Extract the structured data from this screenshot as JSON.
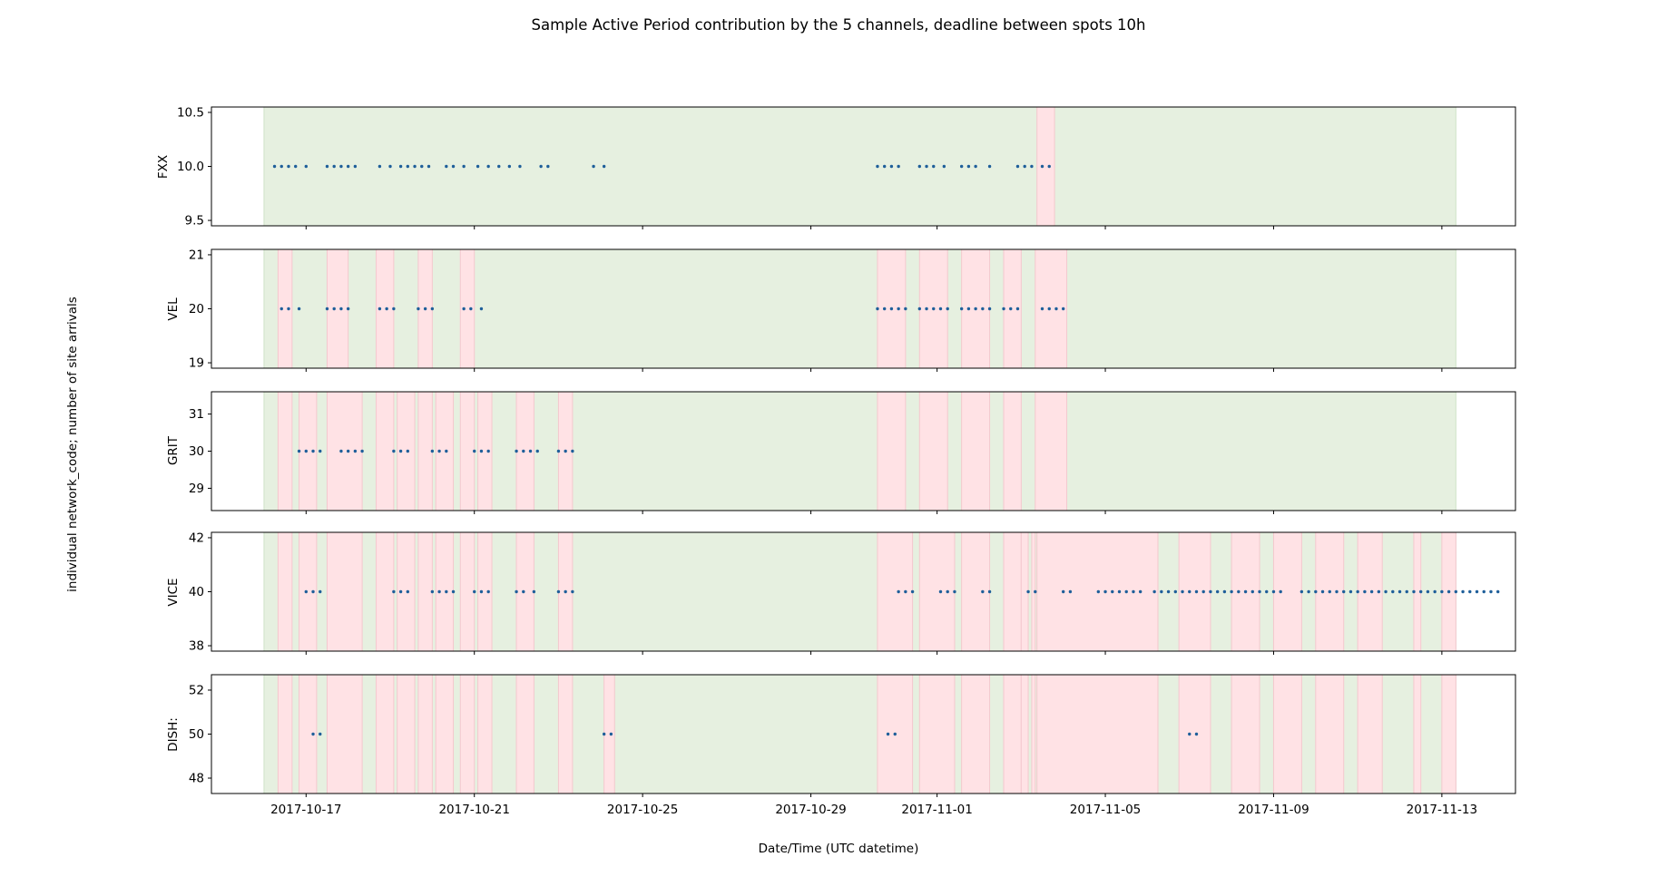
{
  "chart_data": {
    "type": "scatter",
    "title": "Sample Active Period contribution by the 5 channels, deadline between spots 10h",
    "xlabel": "Date/Time (UTC datetime)",
    "ylabel": "individual network_code; number of site arrivals",
    "x_axis": {
      "range": [
        "2017-10-14T18:00",
        "2017-11-14T18:00"
      ],
      "ticks": [
        "2017-10-17",
        "2017-10-21",
        "2017-10-25",
        "2017-10-29",
        "2017-11-01",
        "2017-11-05",
        "2017-11-09",
        "2017-11-13"
      ]
    },
    "colors": {
      "active": "#e6f0e0",
      "active_edge": "#cfe2c8",
      "gap": "#ffe2e5",
      "gap_edge": "#f4c8ce",
      "point": "#1f5f9a"
    },
    "overall_period": [
      "2017-10-16T00:00",
      "2017-11-13T08:00"
    ],
    "panels": [
      {
        "channel": "FXX",
        "value": 10,
        "ylim": [
          9.45,
          10.55
        ],
        "yticks": [
          "9.5",
          "10.0",
          "10.5"
        ],
        "gaps": [
          [
            "2017-11-03T09:00",
            "2017-11-03T19:00"
          ]
        ],
        "points": [
          "2017-10-16T06:00",
          "2017-10-16T10:00",
          "2017-10-16T14:00",
          "2017-10-16T18:00",
          "2017-10-17T00:00",
          "2017-10-17T12:00",
          "2017-10-17T16:00",
          "2017-10-17T20:00",
          "2017-10-18T00:00",
          "2017-10-18T04:00",
          "2017-10-18T18:00",
          "2017-10-19T00:00",
          "2017-10-19T06:00",
          "2017-10-19T10:00",
          "2017-10-19T14:00",
          "2017-10-19T18:00",
          "2017-10-19T22:00",
          "2017-10-20T08:00",
          "2017-10-20T12:00",
          "2017-10-20T18:00",
          "2017-10-21T02:00",
          "2017-10-21T08:00",
          "2017-10-21T14:00",
          "2017-10-21T20:00",
          "2017-10-22T02:00",
          "2017-10-22T14:00",
          "2017-10-22T18:00",
          "2017-10-23T20:00",
          "2017-10-24T02:00",
          "2017-10-30T14:00",
          "2017-10-30T18:00",
          "2017-10-30T22:00",
          "2017-10-31T02:00",
          "2017-10-31T14:00",
          "2017-10-31T18:00",
          "2017-10-31T22:00",
          "2017-11-01T04:00",
          "2017-11-01T14:00",
          "2017-11-01T18:00",
          "2017-11-01T22:00",
          "2017-11-02T06:00",
          "2017-11-02T22:00",
          "2017-11-03T02:00",
          "2017-11-03T06:00",
          "2017-11-03T12:00",
          "2017-11-03T16:00"
        ]
      },
      {
        "channel": "VEL",
        "value": 20,
        "ylim": [
          18.9,
          21.1
        ],
        "yticks": [
          "19",
          "20",
          "21"
        ],
        "gaps": [
          [
            "2017-10-16T08:00",
            "2017-10-16T16:00"
          ],
          [
            "2017-10-17T12:00",
            "2017-10-18T00:00"
          ],
          [
            "2017-10-18T16:00",
            "2017-10-19T02:00"
          ],
          [
            "2017-10-19T16:00",
            "2017-10-20T00:00"
          ],
          [
            "2017-10-20T16:00",
            "2017-10-21T00:00"
          ],
          [
            "2017-10-30T14:00",
            "2017-10-31T06:00"
          ],
          [
            "2017-10-31T14:00",
            "2017-11-01T06:00"
          ],
          [
            "2017-11-01T14:00",
            "2017-11-02T06:00"
          ],
          [
            "2017-11-02T14:00",
            "2017-11-03T00:00"
          ],
          [
            "2017-11-03T08:00",
            "2017-11-04T02:00"
          ]
        ],
        "points": [
          "2017-10-16T10:00",
          "2017-10-16T14:00",
          "2017-10-16T20:00",
          "2017-10-17T12:00",
          "2017-10-17T16:00",
          "2017-10-17T20:00",
          "2017-10-18T00:00",
          "2017-10-18T18:00",
          "2017-10-18T22:00",
          "2017-10-19T02:00",
          "2017-10-19T16:00",
          "2017-10-19T20:00",
          "2017-10-20T00:00",
          "2017-10-20T18:00",
          "2017-10-20T22:00",
          "2017-10-21T04:00",
          "2017-10-30T14:00",
          "2017-10-30T18:00",
          "2017-10-30T22:00",
          "2017-10-31T02:00",
          "2017-10-31T06:00",
          "2017-10-31T14:00",
          "2017-10-31T18:00",
          "2017-10-31T22:00",
          "2017-11-01T02:00",
          "2017-11-01T06:00",
          "2017-11-01T14:00",
          "2017-11-01T18:00",
          "2017-11-01T22:00",
          "2017-11-02T02:00",
          "2017-11-02T06:00",
          "2017-11-02T14:00",
          "2017-11-02T18:00",
          "2017-11-02T22:00",
          "2017-11-03T12:00",
          "2017-11-03T16:00",
          "2017-11-03T20:00",
          "2017-11-04T00:00"
        ]
      },
      {
        "channel": "GRIT",
        "value": 30,
        "ylim": [
          28.4,
          31.6
        ],
        "yticks": [
          "29",
          "30",
          "31"
        ],
        "gaps": [
          [
            "2017-10-16T08:00",
            "2017-10-16T16:00"
          ],
          [
            "2017-10-16T20:00",
            "2017-10-17T06:00"
          ],
          [
            "2017-10-17T12:00",
            "2017-10-18T08:00"
          ],
          [
            "2017-10-18T16:00",
            "2017-10-19T02:00"
          ],
          [
            "2017-10-19T04:00",
            "2017-10-19T14:00"
          ],
          [
            "2017-10-19T16:00",
            "2017-10-20T00:00"
          ],
          [
            "2017-10-20T02:00",
            "2017-10-20T12:00"
          ],
          [
            "2017-10-20T16:00",
            "2017-10-21T00:00"
          ],
          [
            "2017-10-21T02:00",
            "2017-10-21T10:00"
          ],
          [
            "2017-10-22T00:00",
            "2017-10-22T10:00"
          ],
          [
            "2017-10-23T00:00",
            "2017-10-23T08:00"
          ],
          [
            "2017-10-30T14:00",
            "2017-10-31T06:00"
          ],
          [
            "2017-10-31T14:00",
            "2017-11-01T06:00"
          ],
          [
            "2017-11-01T14:00",
            "2017-11-02T06:00"
          ],
          [
            "2017-11-02T14:00",
            "2017-11-03T00:00"
          ],
          [
            "2017-11-03T08:00",
            "2017-11-04T02:00"
          ]
        ],
        "points": [
          "2017-10-16T20:00",
          "2017-10-17T00:00",
          "2017-10-17T04:00",
          "2017-10-17T08:00",
          "2017-10-17T20:00",
          "2017-10-18T00:00",
          "2017-10-18T04:00",
          "2017-10-18T08:00",
          "2017-10-19T02:00",
          "2017-10-19T06:00",
          "2017-10-19T10:00",
          "2017-10-20T00:00",
          "2017-10-20T04:00",
          "2017-10-20T08:00",
          "2017-10-21T00:00",
          "2017-10-21T04:00",
          "2017-10-21T08:00",
          "2017-10-22T00:00",
          "2017-10-22T04:00",
          "2017-10-22T08:00",
          "2017-10-22T12:00",
          "2017-10-23T00:00",
          "2017-10-23T04:00",
          "2017-10-23T08:00"
        ]
      },
      {
        "channel": "VICE",
        "value": 40,
        "ylim": [
          37.8,
          42.2
        ],
        "yticks": [
          "38",
          "40",
          "42"
        ],
        "gaps": [
          [
            "2017-10-16T08:00",
            "2017-10-16T16:00"
          ],
          [
            "2017-10-16T20:00",
            "2017-10-17T06:00"
          ],
          [
            "2017-10-17T12:00",
            "2017-10-18T08:00"
          ],
          [
            "2017-10-18T16:00",
            "2017-10-19T02:00"
          ],
          [
            "2017-10-19T04:00",
            "2017-10-19T14:00"
          ],
          [
            "2017-10-19T16:00",
            "2017-10-20T00:00"
          ],
          [
            "2017-10-20T02:00",
            "2017-10-20T12:00"
          ],
          [
            "2017-10-20T16:00",
            "2017-10-21T00:00"
          ],
          [
            "2017-10-21T02:00",
            "2017-10-21T10:00"
          ],
          [
            "2017-10-22T00:00",
            "2017-10-22T10:00"
          ],
          [
            "2017-10-23T00:00",
            "2017-10-23T08:00"
          ],
          [
            "2017-10-30T14:00",
            "2017-10-31T10:00"
          ],
          [
            "2017-10-31T14:00",
            "2017-11-01T10:00"
          ],
          [
            "2017-11-01T14:00",
            "2017-11-02T06:00"
          ],
          [
            "2017-11-02T14:00",
            "2017-11-03T00:00"
          ],
          [
            "2017-11-03T00:00",
            "2017-11-03T04:00"
          ],
          [
            "2017-11-03T06:00",
            "2017-11-03T08:00"
          ],
          [
            "2017-11-03T09:00",
            "2017-11-06T06:00"
          ],
          [
            "2017-11-06T18:00",
            "2017-11-07T12:00"
          ],
          [
            "2017-11-08T00:00",
            "2017-11-08T16:00"
          ],
          [
            "2017-11-09T00:00",
            "2017-11-09T16:00"
          ],
          [
            "2017-11-10T00:00",
            "2017-11-10T16:00"
          ],
          [
            "2017-11-11T00:00",
            "2017-11-11T14:00"
          ],
          [
            "2017-11-12T08:00",
            "2017-11-12T12:00"
          ],
          [
            "2017-11-13T00:00",
            "2017-11-13T08:00"
          ]
        ],
        "points": [
          "2017-10-17T00:00",
          "2017-10-17T04:00",
          "2017-10-17T08:00",
          "2017-10-19T02:00",
          "2017-10-19T06:00",
          "2017-10-19T10:00",
          "2017-10-20T00:00",
          "2017-10-20T04:00",
          "2017-10-20T08:00",
          "2017-10-20T12:00",
          "2017-10-21T00:00",
          "2017-10-21T04:00",
          "2017-10-21T08:00",
          "2017-10-22T00:00",
          "2017-10-22T04:00",
          "2017-10-22T10:00",
          "2017-10-23T00:00",
          "2017-10-23T04:00",
          "2017-10-23T08:00",
          "2017-10-31T02:00",
          "2017-10-31T06:00",
          "2017-10-31T10:00",
          "2017-11-01T02:00",
          "2017-11-01T06:00",
          "2017-11-01T10:00",
          "2017-11-02T02:00",
          "2017-11-02T06:00",
          "2017-11-03T04:00",
          "2017-11-03T08:00",
          "2017-11-04T00:00",
          "2017-11-04T04:00",
          "2017-11-04T20:00",
          "2017-11-05T00:00",
          "2017-11-05T04:00",
          "2017-11-05T08:00",
          "2017-11-05T12:00",
          "2017-11-05T16:00",
          "2017-11-05T20:00",
          "2017-11-06T04:00",
          "2017-11-06T08:00",
          "2017-11-06T12:00",
          "2017-11-06T16:00",
          "2017-11-06T20:00",
          "2017-11-07T00:00",
          "2017-11-07T04:00",
          "2017-11-07T08:00",
          "2017-11-07T12:00",
          "2017-11-07T16:00",
          "2017-11-07T20:00",
          "2017-11-08T00:00",
          "2017-11-08T04:00",
          "2017-11-08T08:00",
          "2017-11-08T12:00",
          "2017-11-08T16:00",
          "2017-11-08T20:00",
          "2017-11-09T00:00",
          "2017-11-09T04:00",
          "2017-11-09T16:00",
          "2017-11-09T20:00",
          "2017-11-10T00:00",
          "2017-11-10T04:00",
          "2017-11-10T08:00",
          "2017-11-10T12:00",
          "2017-11-10T16:00",
          "2017-11-10T20:00",
          "2017-11-11T00:00",
          "2017-11-11T04:00",
          "2017-11-11T08:00",
          "2017-11-11T12:00",
          "2017-11-11T16:00",
          "2017-11-11T20:00",
          "2017-11-12T00:00",
          "2017-11-12T04:00",
          "2017-11-12T08:00",
          "2017-11-12T12:00",
          "2017-11-12T16:00",
          "2017-11-12T20:00",
          "2017-11-13T00:00",
          "2017-11-13T04:00",
          "2017-11-13T08:00",
          "2017-11-13T12:00",
          "2017-11-13T16:00",
          "2017-11-13T20:00",
          "2017-11-14T00:00",
          "2017-11-14T04:00",
          "2017-11-14T08:00"
        ]
      },
      {
        "channel": "DISH:",
        "value": 50,
        "ylim": [
          47.3,
          52.7
        ],
        "yticks": [
          "48",
          "50",
          "52"
        ],
        "gaps": [
          [
            "2017-10-16T08:00",
            "2017-10-16T16:00"
          ],
          [
            "2017-10-16T20:00",
            "2017-10-17T06:00"
          ],
          [
            "2017-10-17T12:00",
            "2017-10-18T08:00"
          ],
          [
            "2017-10-18T16:00",
            "2017-10-19T02:00"
          ],
          [
            "2017-10-19T04:00",
            "2017-10-19T14:00"
          ],
          [
            "2017-10-19T16:00",
            "2017-10-20T00:00"
          ],
          [
            "2017-10-20T02:00",
            "2017-10-20T12:00"
          ],
          [
            "2017-10-20T16:00",
            "2017-10-21T00:00"
          ],
          [
            "2017-10-21T02:00",
            "2017-10-21T10:00"
          ],
          [
            "2017-10-22T00:00",
            "2017-10-22T10:00"
          ],
          [
            "2017-10-23T00:00",
            "2017-10-23T08:00"
          ],
          [
            "2017-10-24T02:00",
            "2017-10-24T08:00"
          ],
          [
            "2017-10-30T14:00",
            "2017-10-31T10:00"
          ],
          [
            "2017-10-31T14:00",
            "2017-11-01T10:00"
          ],
          [
            "2017-11-01T14:00",
            "2017-11-02T06:00"
          ],
          [
            "2017-11-02T14:00",
            "2017-11-03T00:00"
          ],
          [
            "2017-11-03T00:00",
            "2017-11-03T04:00"
          ],
          [
            "2017-11-03T06:00",
            "2017-11-03T08:00"
          ],
          [
            "2017-11-03T09:00",
            "2017-11-06T06:00"
          ],
          [
            "2017-11-06T18:00",
            "2017-11-07T12:00"
          ],
          [
            "2017-11-08T00:00",
            "2017-11-08T16:00"
          ],
          [
            "2017-11-09T00:00",
            "2017-11-09T16:00"
          ],
          [
            "2017-11-10T00:00",
            "2017-11-10T16:00"
          ],
          [
            "2017-11-11T00:00",
            "2017-11-11T14:00"
          ],
          [
            "2017-11-12T08:00",
            "2017-11-12T12:00"
          ],
          [
            "2017-11-13T00:00",
            "2017-11-13T08:00"
          ]
        ],
        "points": [
          "2017-10-17T04:00",
          "2017-10-17T08:00",
          "2017-10-24T02:00",
          "2017-10-24T06:00",
          "2017-10-30T20:00",
          "2017-10-31T00:00",
          "2017-11-07T00:00",
          "2017-11-07T04:00"
        ]
      }
    ]
  }
}
